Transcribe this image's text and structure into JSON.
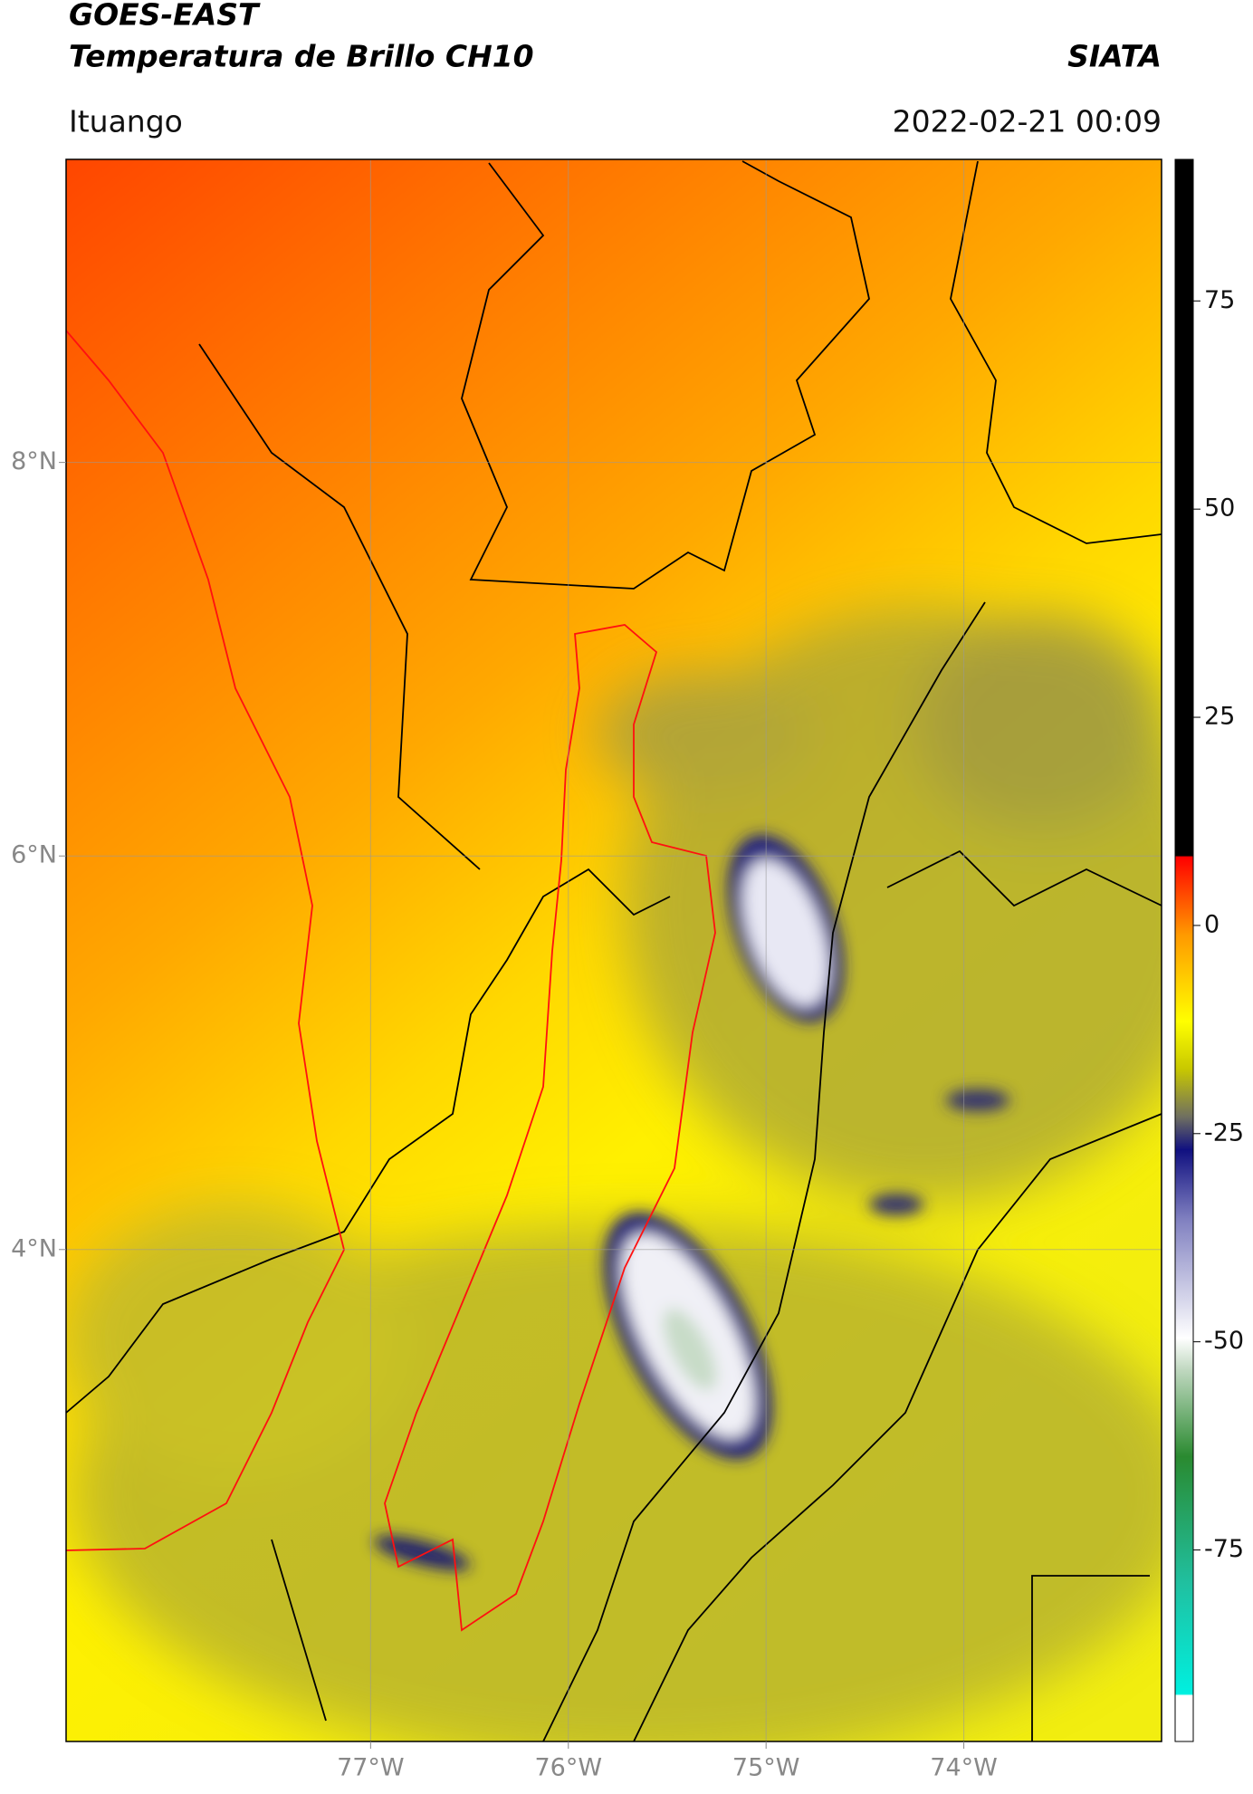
{
  "header": {
    "title": "GOES-EAST",
    "subtitle": "Temperatura de Brillo CH10",
    "agency": "SIATA",
    "location": "Ituango",
    "timestamp": "2022-02-21 00:09"
  },
  "map": {
    "xlim": [
      -78.54,
      -73.0
    ],
    "ylim": [
      1.5,
      9.54
    ],
    "xticks": [
      {
        "value": -77,
        "label": "77°W"
      },
      {
        "value": -76,
        "label": "76°W"
      },
      {
        "value": -75,
        "label": "75°W"
      },
      {
        "value": -74,
        "label": "74°W"
      }
    ],
    "yticks": [
      {
        "value": 4,
        "label": "4°N"
      },
      {
        "value": 6,
        "label": "6°N"
      },
      {
        "value": 8,
        "label": "8°N"
      }
    ],
    "grid": true
  },
  "colorbar": {
    "clim": [
      -98,
      92
    ],
    "ticks": [
      -75,
      -50,
      -25,
      0,
      25,
      50,
      75
    ]
  }
}
